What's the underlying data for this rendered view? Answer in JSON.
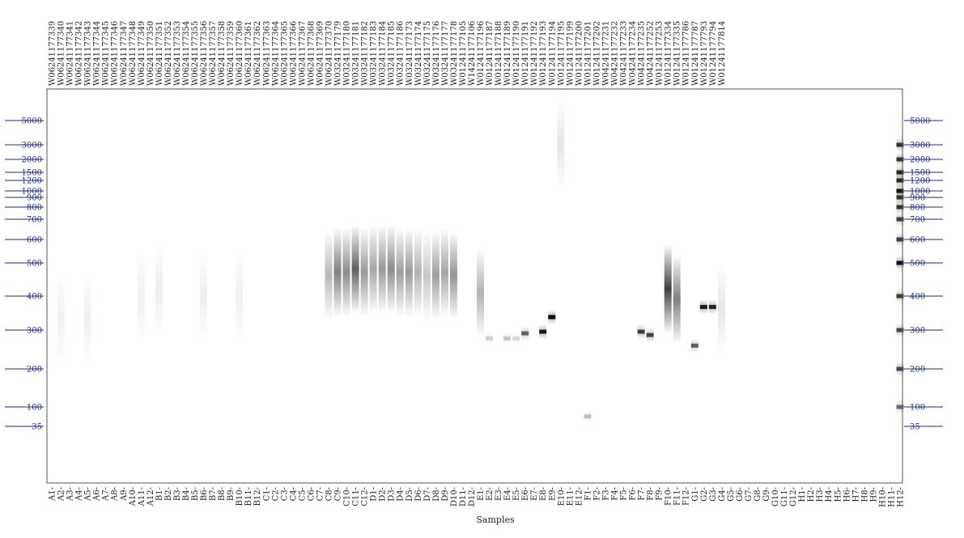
{
  "chart_data": {
    "type": "heatmap",
    "title": "",
    "xlabel": "Samples",
    "ylabel": "",
    "size_markers": [
      5000,
      3000,
      2000,
      1500,
      1200,
      1000,
      900,
      800,
      700,
      600,
      500,
      400,
      300,
      200,
      100,
      35
    ],
    "ladder_lane": "H12",
    "wells": [
      "A1",
      "A2",
      "A3",
      "A4",
      "A5",
      "A6",
      "A7",
      "A8",
      "A9",
      "A10",
      "A11",
      "A12",
      "B1",
      "B2",
      "B3",
      "B4",
      "B5",
      "B6",
      "B7",
      "B8",
      "B9",
      "B10",
      "B11",
      "B12",
      "C1",
      "C2",
      "C3",
      "C4",
      "C5",
      "C6",
      "C7",
      "C8",
      "C9",
      "C10",
      "C11",
      "C12",
      "D1",
      "D2",
      "D3",
      "D4",
      "D5",
      "D6",
      "D7",
      "D8",
      "D9",
      "D10",
      "D11",
      "D12",
      "E1",
      "E2",
      "E3",
      "E4",
      "E5",
      "E6",
      "E7",
      "E8",
      "E9",
      "E10",
      "E11",
      "E12",
      "F1",
      "F2",
      "F3",
      "F4",
      "F5",
      "F6",
      "F7",
      "F8",
      "F9",
      "F10",
      "F11",
      "F12",
      "G1",
      "G2",
      "G3",
      "G4",
      "G5",
      "G6",
      "G7",
      "G8",
      "G9",
      "G10",
      "G11",
      "G12",
      "H1",
      "H2",
      "H3",
      "H4",
      "H5",
      "H6",
      "H7",
      "H8",
      "H9",
      "H10",
      "H11",
      "H12"
    ],
    "sample_ids": [
      "W06241177339",
      "W06241177340",
      "W06241177341",
      "W06241177342",
      "W06241177343",
      "W06241177344",
      "W06241177345",
      "W06241177346",
      "W06241177347",
      "W06241177348",
      "W06241177349",
      "W06241177350",
      "W06241177351",
      "W06241177352",
      "W06241177353",
      "W06241177354",
      "W06241177355",
      "W06241177356",
      "W06241177357",
      "W06241177358",
      "W06241177359",
      "W06241177360",
      "W06241177361",
      "W06241177362",
      "W06241177363",
      "W06241177364",
      "W06241177365",
      "W06241177366",
      "W06241177367",
      "W06241177368",
      "W06241177369",
      "W06241177370",
      "W03241177179",
      "W03241177180",
      "W03241177181",
      "W03241177182",
      "W03241177183",
      "W03241177184",
      "W03241177185",
      "W03241177186",
      "W03241177173",
      "W03241177174",
      "W03241177175",
      "W03241177176",
      "W03241177177",
      "W03241177178",
      "W01241177105",
      "W14241177106",
      "W01241177196",
      "W01241177187",
      "W01241177188",
      "W01241177189",
      "W01241177190",
      "W01241177191",
      "W01241177192",
      "W01241177193",
      "W01241177194",
      "W01241177195",
      "W01241177199",
      "W01241177200",
      "W01241177201",
      "W01241177202",
      "W04241177231",
      "W04241177232",
      "W04241177233",
      "W04241177234",
      "W04241177235",
      "W04241177252",
      "W01241177253",
      "W01241177334",
      "W01241177335",
      "W01241177786",
      "W01241177787",
      "W01241177793",
      "W01241177794",
      "W01241177814"
    ],
    "lanes": [
      {
        "well": "A2",
        "bands": [
          {
            "bp": 330,
            "intensity": 0.06,
            "sharp": false
          }
        ]
      },
      {
        "well": "A5",
        "bands": [
          {
            "bp": 330,
            "intensity": 0.06,
            "sharp": false
          }
        ]
      },
      {
        "well": "A11",
        "bands": [
          {
            "bp": 400,
            "intensity": 0.06,
            "sharp": false
          }
        ]
      },
      {
        "well": "B1",
        "bands": [
          {
            "bp": 420,
            "intensity": 0.07,
            "sharp": false
          }
        ]
      },
      {
        "well": "B6",
        "bands": [
          {
            "bp": 400,
            "intensity": 0.07,
            "sharp": false
          }
        ]
      },
      {
        "well": "B10",
        "bands": [
          {
            "bp": 400,
            "intensity": 0.06,
            "sharp": false
          }
        ]
      },
      {
        "well": "C8",
        "bands": [
          {
            "bp": 460,
            "intensity": 0.28,
            "sharp": false
          }
        ]
      },
      {
        "well": "C9",
        "bands": [
          {
            "bp": 470,
            "intensity": 0.5,
            "sharp": false
          }
        ]
      },
      {
        "well": "C10",
        "bands": [
          {
            "bp": 470,
            "intensity": 0.45,
            "sharp": false
          }
        ]
      },
      {
        "well": "C11",
        "bands": [
          {
            "bp": 480,
            "intensity": 0.62,
            "sharp": false
          }
        ]
      },
      {
        "well": "C12",
        "bands": [
          {
            "bp": 470,
            "intensity": 0.4,
            "sharp": false
          }
        ]
      },
      {
        "well": "D1",
        "bands": [
          {
            "bp": 480,
            "intensity": 0.35,
            "sharp": false
          }
        ]
      },
      {
        "well": "D2",
        "bands": [
          {
            "bp": 480,
            "intensity": 0.4,
            "sharp": false
          }
        ]
      },
      {
        "well": "D3",
        "bands": [
          {
            "bp": 480,
            "intensity": 0.45,
            "sharp": false
          }
        ]
      },
      {
        "well": "D4",
        "bands": [
          {
            "bp": 470,
            "intensity": 0.38,
            "sharp": false
          }
        ]
      },
      {
        "well": "D5",
        "bands": [
          {
            "bp": 470,
            "intensity": 0.4,
            "sharp": false
          }
        ]
      },
      {
        "well": "D6",
        "bands": [
          {
            "bp": 470,
            "intensity": 0.3,
            "sharp": false
          }
        ]
      },
      {
        "well": "D7",
        "bands": [
          {
            "bp": 460,
            "intensity": 0.22,
            "sharp": false
          }
        ]
      },
      {
        "well": "D8",
        "bands": [
          {
            "bp": 460,
            "intensity": 0.38,
            "sharp": false
          }
        ]
      },
      {
        "well": "D9",
        "bands": [
          {
            "bp": 470,
            "intensity": 0.35,
            "sharp": false
          }
        ]
      },
      {
        "well": "D10",
        "bands": [
          {
            "bp": 460,
            "intensity": 0.42,
            "sharp": false
          }
        ]
      },
      {
        "well": "E1",
        "bands": [
          {
            "bp": 410,
            "intensity": 0.3,
            "sharp": false
          }
        ]
      },
      {
        "well": "E2",
        "bands": [
          {
            "bp": 275,
            "intensity": 0.15,
            "sharp": true
          }
        ]
      },
      {
        "well": "E4",
        "bands": [
          {
            "bp": 275,
            "intensity": 0.18,
            "sharp": true
          }
        ]
      },
      {
        "well": "E5",
        "bands": [
          {
            "bp": 275,
            "intensity": 0.12,
            "sharp": true
          }
        ]
      },
      {
        "well": "E6",
        "bands": [
          {
            "bp": 290,
            "intensity": 0.55,
            "sharp": true
          }
        ]
      },
      {
        "well": "E8",
        "bands": [
          {
            "bp": 295,
            "intensity": 0.85,
            "sharp": true
          }
        ]
      },
      {
        "well": "E9",
        "bands": [
          {
            "bp": 335,
            "intensity": 0.95,
            "sharp": true
          }
        ]
      },
      {
        "well": "E10",
        "bands": [
          {
            "bp": 3000,
            "intensity": 0.1,
            "sharp": false
          }
        ]
      },
      {
        "well": "F1",
        "bands": [
          {
            "bp": 60,
            "intensity": 0.2,
            "sharp": true
          }
        ]
      },
      {
        "well": "F7",
        "bands": [
          {
            "bp": 295,
            "intensity": 0.7,
            "sharp": true
          }
        ]
      },
      {
        "well": "F8",
        "bands": [
          {
            "bp": 285,
            "intensity": 0.65,
            "sharp": true
          }
        ]
      },
      {
        "well": "F10",
        "bands": [
          {
            "bp": 420,
            "intensity": 0.75,
            "sharp": false
          }
        ]
      },
      {
        "well": "F11",
        "bands": [
          {
            "bp": 390,
            "intensity": 0.5,
            "sharp": false
          }
        ]
      },
      {
        "well": "G1",
        "bands": [
          {
            "bp": 255,
            "intensity": 0.55,
            "sharp": true
          }
        ]
      },
      {
        "well": "G2",
        "bands": [
          {
            "bp": 365,
            "intensity": 0.85,
            "sharp": true
          }
        ]
      },
      {
        "well": "G3",
        "bands": [
          {
            "bp": 365,
            "intensity": 0.8,
            "sharp": true
          }
        ]
      },
      {
        "well": "G4",
        "bands": [
          {
            "bp": 360,
            "intensity": 0.1,
            "sharp": false
          }
        ]
      },
      {
        "well": "H12",
        "bands": [
          {
            "bp": 3000,
            "intensity": 0.75,
            "sharp": true
          },
          {
            "bp": 2000,
            "intensity": 0.75,
            "sharp": true
          },
          {
            "bp": 1500,
            "intensity": 0.8,
            "sharp": true
          },
          {
            "bp": 1200,
            "intensity": 0.8,
            "sharp": true
          },
          {
            "bp": 1000,
            "intensity": 0.9,
            "sharp": true
          },
          {
            "bp": 900,
            "intensity": 0.75,
            "sharp": true
          },
          {
            "bp": 800,
            "intensity": 0.75,
            "sharp": true
          },
          {
            "bp": 700,
            "intensity": 0.7,
            "sharp": true
          },
          {
            "bp": 600,
            "intensity": 0.7,
            "sharp": true
          },
          {
            "bp": 500,
            "intensity": 0.9,
            "sharp": true
          },
          {
            "bp": 400,
            "intensity": 0.7,
            "sharp": true
          },
          {
            "bp": 300,
            "intensity": 0.65,
            "sharp": true
          },
          {
            "bp": 200,
            "intensity": 0.65,
            "sharp": true
          },
          {
            "bp": 100,
            "intensity": 0.5,
            "sharp": true
          }
        ]
      }
    ],
    "colors": {
      "marker_line": "#1a2a9a",
      "band": "#000000",
      "background": "#ffffff",
      "frame": "#555555"
    }
  }
}
